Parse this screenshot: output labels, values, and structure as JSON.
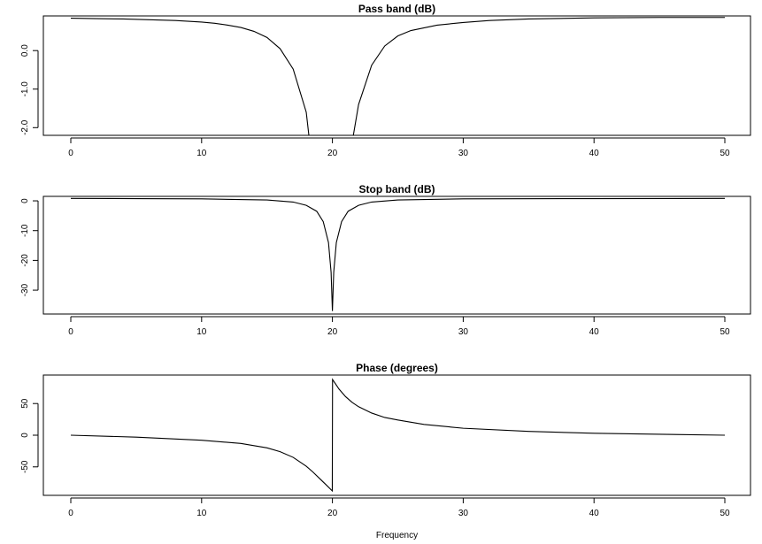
{
  "chart_data": [
    {
      "type": "line",
      "title": "Pass band (dB)",
      "xlabel": "",
      "ylabel": "",
      "xlim": [
        0,
        50
      ],
      "ylim": [
        -2.2,
        0.9
      ],
      "x_ticks": [
        0,
        10,
        20,
        30,
        40,
        50
      ],
      "x_tick_labels": [
        "0",
        "10",
        "20",
        "30",
        "40",
        "50"
      ],
      "y_ticks": [
        -2.0,
        -1.0,
        0.0
      ],
      "y_tick_labels": [
        "-2.0",
        "-1.0",
        "0.0"
      ],
      "series": [
        {
          "x": [
            0,
            2,
            4,
            6,
            8,
            10,
            11,
            12,
            13,
            14,
            15,
            16,
            17,
            18,
            18.2,
            21.6,
            22,
            23,
            24,
            25,
            26,
            28,
            30,
            32,
            35,
            40,
            45,
            50
          ],
          "values": [
            0.84,
            0.83,
            0.82,
            0.8,
            0.78,
            0.74,
            0.71,
            0.66,
            0.6,
            0.5,
            0.34,
            0.05,
            -0.48,
            -1.6,
            -2.2,
            -2.2,
            -1.4,
            -0.38,
            0.12,
            0.38,
            0.52,
            0.66,
            0.73,
            0.78,
            0.82,
            0.85,
            0.86,
            0.86
          ]
        }
      ],
      "grid": false
    },
    {
      "type": "line",
      "title": "Stop band (dB)",
      "xlabel": "",
      "ylabel": "",
      "xlim": [
        0,
        50
      ],
      "ylim": [
        -38,
        1.5
      ],
      "x_ticks": [
        0,
        10,
        20,
        30,
        40,
        50
      ],
      "x_tick_labels": [
        "0",
        "10",
        "20",
        "30",
        "40",
        "50"
      ],
      "y_ticks": [
        -30,
        -20,
        -10,
        0
      ],
      "y_tick_labels": [
        "-30",
        "-20",
        "-10",
        "0"
      ],
      "series": [
        {
          "x": [
            0,
            5,
            10,
            15,
            17,
            18,
            18.8,
            19.3,
            19.7,
            19.9,
            20,
            20.1,
            20.3,
            20.7,
            21.2,
            22,
            23,
            25,
            30,
            40,
            50
          ],
          "values": [
            0.8,
            0.75,
            0.65,
            0.3,
            -0.4,
            -1.5,
            -3.5,
            -7,
            -14,
            -24,
            -37,
            -24,
            -14,
            -7,
            -3.5,
            -1.5,
            -0.4,
            0.3,
            0.65,
            0.75,
            0.8
          ]
        }
      ],
      "grid": false
    },
    {
      "type": "line",
      "title": "Phase (degrees)",
      "xlabel": "Frequency",
      "ylabel": "",
      "xlim": [
        0,
        50
      ],
      "ylim": [
        -95,
        95
      ],
      "x_ticks": [
        0,
        10,
        20,
        30,
        40,
        50
      ],
      "x_tick_labels": [
        "0",
        "10",
        "20",
        "30",
        "40",
        "50"
      ],
      "y_ticks": [
        -50,
        0,
        50
      ],
      "y_tick_labels": [
        "-50",
        "0",
        "50"
      ],
      "series": [
        {
          "x": [
            0,
            5,
            10,
            13,
            15,
            16,
            17,
            18,
            18.5,
            19,
            19.5,
            19.99,
            20.01,
            20.5,
            21,
            21.5,
            22,
            23,
            24,
            25,
            27,
            30,
            35,
            40,
            45,
            50
          ],
          "values": [
            0,
            -3,
            -8,
            -13,
            -20,
            -26,
            -35,
            -49,
            -58,
            -68,
            -78,
            -88,
            88,
            73,
            61,
            52,
            45,
            35,
            28,
            24,
            17,
            11,
            6,
            3,
            1.5,
            0
          ]
        }
      ],
      "grid": false
    }
  ]
}
